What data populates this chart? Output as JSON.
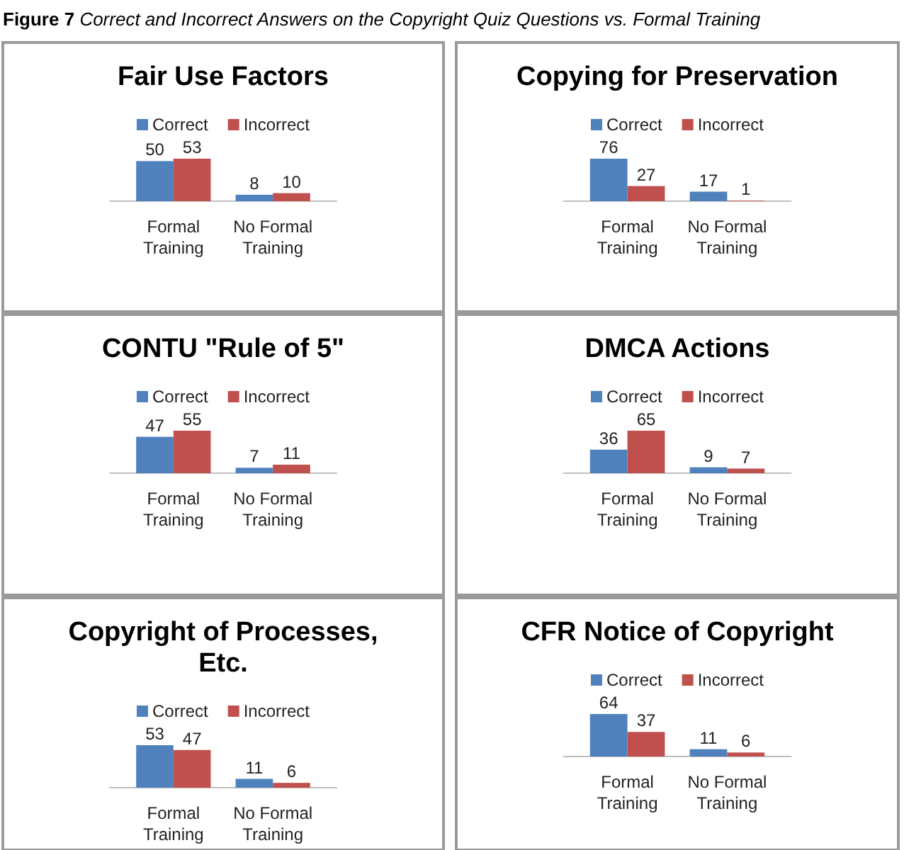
{
  "chart_data": [
    {
      "type": "bar",
      "title": "Fair Use Factors",
      "annotations": [
        "Figure 7 Correct and Incorrect Answers on the Copyright Quiz Questions vs. Formal Training"
      ],
      "categories": [
        "Formal Training",
        "No Formal Training"
      ],
      "series": [
        {
          "name": "Correct",
          "color": "#4f81bd",
          "values": [
            50,
            8
          ]
        },
        {
          "name": "Incorrect",
          "color": "#c0504d",
          "values": [
            53,
            10
          ]
        }
      ],
      "data_labels": true,
      "legend": "top"
    },
    {
      "type": "bar",
      "title": "Copying for Preservation",
      "categories": [
        "Formal Training",
        "No Formal Training"
      ],
      "series": [
        {
          "name": "Correct",
          "color": "#4f81bd",
          "values": [
            76,
            17
          ]
        },
        {
          "name": "Incorrect",
          "color": "#c0504d",
          "values": [
            27,
            1
          ]
        }
      ],
      "data_labels": true,
      "legend": "top"
    },
    {
      "type": "bar",
      "title": "CONTU \"Rule of 5\"",
      "categories": [
        "Formal Training",
        "No Formal Training"
      ],
      "series": [
        {
          "name": "Correct",
          "color": "#4f81bd",
          "values": [
            47,
            7
          ]
        },
        {
          "name": "Incorrect",
          "color": "#c0504d",
          "values": [
            55,
            11
          ]
        }
      ],
      "data_labels": true,
      "legend": "top"
    },
    {
      "type": "bar",
      "title": "DMCA Actions",
      "categories": [
        "Formal Training",
        "No Formal Training"
      ],
      "series": [
        {
          "name": "Correct",
          "color": "#4f81bd",
          "values": [
            36,
            9
          ]
        },
        {
          "name": "Incorrect",
          "color": "#c0504d",
          "values": [
            65,
            7
          ]
        }
      ],
      "data_labels": true,
      "legend": "top"
    },
    {
      "type": "bar",
      "title": "Copyright of Processes, Etc.",
      "categories": [
        "Formal Training",
        "No Formal Training"
      ],
      "series": [
        {
          "name": "Correct",
          "color": "#4f81bd",
          "values": [
            53,
            11
          ]
        },
        {
          "name": "Incorrect",
          "color": "#c0504d",
          "values": [
            47,
            6
          ]
        }
      ],
      "data_labels": true,
      "legend": "top"
    },
    {
      "type": "bar",
      "title": "CFR Notice of Copyright",
      "categories": [
        "Formal Training",
        "No Formal Training"
      ],
      "series": [
        {
          "name": "Correct",
          "color": "#4f81bd",
          "values": [
            64,
            11
          ]
        },
        {
          "name": "Incorrect",
          "color": "#c0504d",
          "values": [
            37,
            6
          ]
        }
      ],
      "data_labels": true,
      "legend": "top"
    }
  ]
}
